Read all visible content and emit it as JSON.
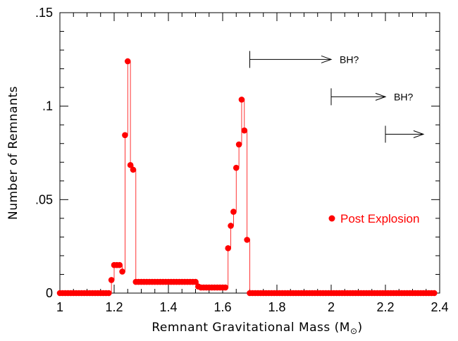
{
  "chart_data": {
    "type": "scatter",
    "xlabel": "Remnant Gravitational Mass (M",
    "xlabel_sub": "⊙",
    "xlabel_close": ")",
    "ylabel": "Number of Remnants",
    "xlim": [
      1.0,
      2.4
    ],
    "ylim": [
      0.0,
      0.15
    ],
    "x_ticks": [
      1.0,
      1.2,
      1.4,
      1.6,
      1.8,
      2.0,
      2.2,
      2.4
    ],
    "x_tick_labels": [
      "1",
      "1.2",
      "1.4",
      "1.6",
      "1.8",
      "2",
      "2.2",
      "2.4"
    ],
    "y_ticks": [
      0.0,
      0.05,
      0.1,
      0.15
    ],
    "y_tick_labels": [
      "0",
      ".05",
      ".1",
      ".15"
    ],
    "grid": false,
    "legend": {
      "position": "right",
      "label": "Post Explosion",
      "color": "#ff0000"
    },
    "series": [
      {
        "name": "Post Explosion",
        "color": "#ff0000",
        "step_line": true,
        "points": [
          [
            1.0,
            0.0
          ],
          [
            1.01,
            0.0
          ],
          [
            1.02,
            0.0
          ],
          [
            1.03,
            0.0
          ],
          [
            1.04,
            0.0
          ],
          [
            1.05,
            0.0
          ],
          [
            1.06,
            0.0
          ],
          [
            1.07,
            0.0
          ],
          [
            1.08,
            0.0
          ],
          [
            1.09,
            0.0
          ],
          [
            1.1,
            0.0
          ],
          [
            1.11,
            0.0
          ],
          [
            1.12,
            0.0
          ],
          [
            1.13,
            0.0
          ],
          [
            1.14,
            0.0
          ],
          [
            1.15,
            0.0
          ],
          [
            1.16,
            0.0
          ],
          [
            1.17,
            0.0
          ],
          [
            1.18,
            0.0
          ],
          [
            1.19,
            0.007
          ],
          [
            1.2,
            0.015
          ],
          [
            1.21,
            0.015
          ],
          [
            1.22,
            0.015
          ],
          [
            1.23,
            0.0115
          ],
          [
            1.24,
            0.0845
          ],
          [
            1.25,
            0.124
          ],
          [
            1.26,
            0.0685
          ],
          [
            1.27,
            0.066
          ],
          [
            1.28,
            0.006
          ],
          [
            1.29,
            0.006
          ],
          [
            1.3,
            0.006
          ],
          [
            1.31,
            0.006
          ],
          [
            1.32,
            0.006
          ],
          [
            1.33,
            0.006
          ],
          [
            1.34,
            0.006
          ],
          [
            1.35,
            0.006
          ],
          [
            1.36,
            0.006
          ],
          [
            1.37,
            0.006
          ],
          [
            1.38,
            0.006
          ],
          [
            1.39,
            0.006
          ],
          [
            1.4,
            0.006
          ],
          [
            1.41,
            0.006
          ],
          [
            1.42,
            0.006
          ],
          [
            1.43,
            0.006
          ],
          [
            1.44,
            0.006
          ],
          [
            1.45,
            0.006
          ],
          [
            1.46,
            0.006
          ],
          [
            1.47,
            0.006
          ],
          [
            1.48,
            0.006
          ],
          [
            1.49,
            0.006
          ],
          [
            1.5,
            0.006
          ],
          [
            1.51,
            0.0035
          ],
          [
            1.52,
            0.003
          ],
          [
            1.53,
            0.003
          ],
          [
            1.54,
            0.003
          ],
          [
            1.55,
            0.003
          ],
          [
            1.56,
            0.003
          ],
          [
            1.57,
            0.003
          ],
          [
            1.58,
            0.003
          ],
          [
            1.59,
            0.003
          ],
          [
            1.6,
            0.003
          ],
          [
            1.61,
            0.003
          ],
          [
            1.62,
            0.024
          ],
          [
            1.63,
            0.036
          ],
          [
            1.64,
            0.0435
          ],
          [
            1.65,
            0.067
          ],
          [
            1.66,
            0.0795
          ],
          [
            1.67,
            0.1035
          ],
          [
            1.68,
            0.087
          ],
          [
            1.69,
            0.0285
          ],
          [
            1.7,
            0.0
          ],
          [
            1.71,
            0.0
          ],
          [
            1.72,
            0.0
          ],
          [
            1.73,
            0.0
          ],
          [
            1.74,
            0.0
          ],
          [
            1.75,
            0.0
          ],
          [
            1.76,
            0.0
          ],
          [
            1.77,
            0.0
          ],
          [
            1.78,
            0.0
          ],
          [
            1.79,
            0.0
          ],
          [
            1.8,
            0.0
          ],
          [
            1.81,
            0.0
          ],
          [
            1.82,
            0.0
          ],
          [
            1.83,
            0.0
          ],
          [
            1.84,
            0.0
          ],
          [
            1.85,
            0.0
          ],
          [
            1.86,
            0.0
          ],
          [
            1.87,
            0.0
          ],
          [
            1.88,
            0.0
          ],
          [
            1.89,
            0.0
          ],
          [
            1.9,
            0.0
          ],
          [
            1.91,
            0.0
          ],
          [
            1.92,
            0.0
          ],
          [
            1.93,
            0.0
          ],
          [
            1.94,
            0.0
          ],
          [
            1.95,
            0.0
          ],
          [
            1.96,
            0.0
          ],
          [
            1.97,
            0.0
          ],
          [
            1.98,
            0.0
          ],
          [
            1.99,
            0.0
          ],
          [
            2.0,
            0.0
          ],
          [
            2.01,
            0.0
          ],
          [
            2.02,
            0.0
          ],
          [
            2.03,
            0.0
          ],
          [
            2.04,
            0.0
          ],
          [
            2.05,
            0.0
          ],
          [
            2.06,
            0.0
          ],
          [
            2.07,
            0.0
          ],
          [
            2.08,
            0.0
          ],
          [
            2.09,
            0.0
          ],
          [
            2.1,
            0.0
          ],
          [
            2.11,
            0.0
          ],
          [
            2.12,
            0.0
          ],
          [
            2.13,
            0.0
          ],
          [
            2.14,
            0.0
          ],
          [
            2.15,
            0.0
          ],
          [
            2.16,
            0.0
          ],
          [
            2.17,
            0.0
          ],
          [
            2.18,
            0.0
          ],
          [
            2.19,
            0.0
          ],
          [
            2.2,
            0.0
          ],
          [
            2.21,
            0.0
          ],
          [
            2.22,
            0.0
          ],
          [
            2.23,
            0.0
          ],
          [
            2.24,
            0.0
          ],
          [
            2.25,
            0.0
          ],
          [
            2.26,
            0.0
          ],
          [
            2.27,
            0.0
          ],
          [
            2.28,
            0.0
          ],
          [
            2.29,
            0.0
          ],
          [
            2.3,
            0.0
          ],
          [
            2.31,
            0.0
          ],
          [
            2.32,
            0.0
          ],
          [
            2.33,
            0.0
          ],
          [
            2.34,
            0.0
          ],
          [
            2.35,
            0.0
          ],
          [
            2.36,
            0.0
          ],
          [
            2.37,
            0.0
          ],
          [
            2.38,
            0.0
          ]
        ]
      }
    ],
    "annotations": [
      {
        "x_start": 1.7,
        "x_end": 2.0,
        "y": 0.125,
        "label": "BH?"
      },
      {
        "x_start": 2.0,
        "x_end": 2.2,
        "y": 0.105,
        "label": "BH?"
      },
      {
        "x_start": 2.2,
        "x_end": 2.34,
        "y": 0.085,
        "label": ""
      }
    ]
  }
}
